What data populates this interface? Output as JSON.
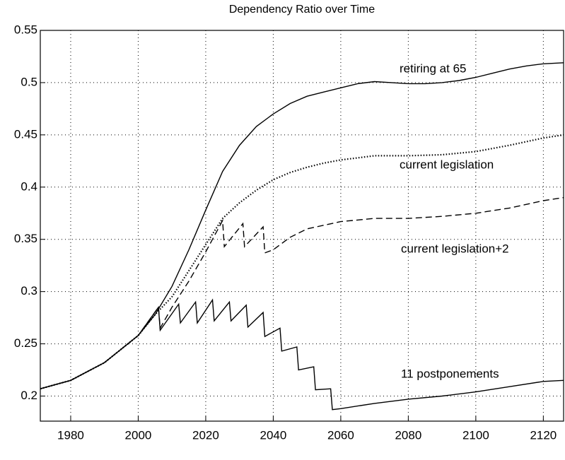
{
  "chart_data": {
    "type": "line",
    "title": "Dependency Ratio over Time",
    "xlim": [
      1971,
      2126
    ],
    "xticks": [
      1980,
      2000,
      2020,
      2040,
      2060,
      2080,
      2100,
      2120
    ],
    "ylim": [
      0.176,
      0.55
    ],
    "yticks": [
      0.2,
      0.25,
      0.3,
      0.35,
      0.4,
      0.45,
      0.5,
      0.55
    ],
    "grid": true,
    "series": [
      {
        "name": "retiring at 65",
        "color": "#000000",
        "style": "solid",
        "x": [
          1971,
          1980,
          1990,
          2000,
          2005,
          2010,
          2015,
          2020,
          2025,
          2030,
          2035,
          2040,
          2045,
          2050,
          2055,
          2060,
          2065,
          2070,
          2075,
          2080,
          2085,
          2090,
          2095,
          2100,
          2105,
          2110,
          2115,
          2120,
          2126
        ],
        "values": [
          0.207,
          0.215,
          0.232,
          0.258,
          0.278,
          0.305,
          0.34,
          0.378,
          0.415,
          0.44,
          0.458,
          0.47,
          0.48,
          0.487,
          0.491,
          0.495,
          0.499,
          0.501,
          0.5,
          0.499,
          0.499,
          0.5,
          0.502,
          0.505,
          0.509,
          0.513,
          0.516,
          0.518,
          0.519
        ]
      },
      {
        "name": "current legislation",
        "color": "#000000",
        "style": "dotted",
        "x": [
          1971,
          1980,
          1990,
          2000,
          2005,
          2010,
          2015,
          2020,
          2025,
          2030,
          2035,
          2040,
          2045,
          2050,
          2055,
          2060,
          2065,
          2070,
          2080,
          2090,
          2100,
          2110,
          2120,
          2126
        ],
        "values": [
          0.207,
          0.215,
          0.232,
          0.258,
          0.278,
          0.295,
          0.32,
          0.345,
          0.37,
          0.385,
          0.397,
          0.407,
          0.414,
          0.419,
          0.423,
          0.426,
          0.428,
          0.43,
          0.43,
          0.431,
          0.434,
          0.44,
          0.447,
          0.45
        ]
      },
      {
        "name": "current legislation+2",
        "color": "#000000",
        "style": "dashed",
        "x": [
          1971,
          1980,
          1990,
          2000,
          2006,
          2006.5,
          2010,
          2015,
          2020,
          2025,
          2025.5,
          2031,
          2031.5,
          2037,
          2037.5,
          2040,
          2045,
          2050,
          2060,
          2070,
          2080,
          2090,
          2100,
          2110,
          2120,
          2126
        ],
        "values": [
          0.207,
          0.215,
          0.232,
          0.258,
          0.285,
          0.265,
          0.285,
          0.31,
          0.338,
          0.368,
          0.343,
          0.365,
          0.343,
          0.362,
          0.337,
          0.34,
          0.352,
          0.36,
          0.367,
          0.37,
          0.37,
          0.372,
          0.375,
          0.38,
          0.387,
          0.39
        ]
      },
      {
        "name": "11 postponements",
        "color": "#000000",
        "style": "solid",
        "x": [
          1971,
          1980,
          1990,
          2000,
          2006,
          2006.5,
          2012,
          2012.5,
          2017,
          2017.5,
          2022,
          2022.5,
          2027,
          2027.5,
          2032,
          2032.5,
          2037,
          2037.5,
          2042,
          2042.5,
          2047,
          2047.5,
          2052,
          2052.5,
          2057,
          2057.5,
          2060,
          2070,
          2080,
          2090,
          2100,
          2110,
          2120,
          2126
        ],
        "values": [
          0.207,
          0.215,
          0.232,
          0.258,
          0.285,
          0.263,
          0.288,
          0.27,
          0.29,
          0.27,
          0.292,
          0.272,
          0.29,
          0.272,
          0.287,
          0.266,
          0.28,
          0.257,
          0.265,
          0.243,
          0.247,
          0.225,
          0.228,
          0.206,
          0.207,
          0.187,
          0.188,
          0.193,
          0.197,
          0.2,
          0.204,
          0.209,
          0.214,
          0.215
        ]
      }
    ]
  }
}
